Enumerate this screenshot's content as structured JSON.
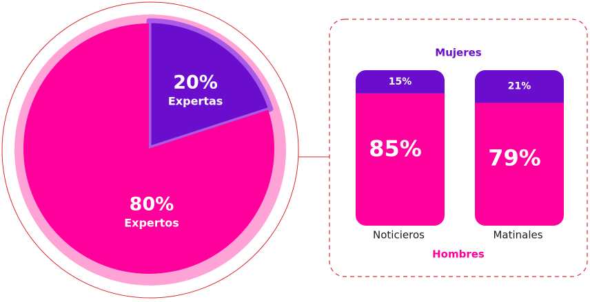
{
  "chart_data": [
    {
      "type": "pie",
      "categories": [
        "Expertas",
        "Expertos"
      ],
      "values": [
        20,
        80
      ],
      "value_labels": [
        "20%",
        "80%"
      ],
      "colors": [
        "#6a0dcc",
        "#ff009c"
      ]
    },
    {
      "type": "bar",
      "stacked": true,
      "categories": [
        "Noticieros",
        "Matinales"
      ],
      "series": [
        {
          "name": "Mujeres",
          "color": "#6a0dcc",
          "values": [
            15,
            21
          ],
          "value_labels": [
            "15%",
            "21%"
          ]
        },
        {
          "name": "Hombres",
          "color": "#ff009c",
          "values": [
            85,
            79
          ],
          "value_labels": [
            "85%",
            "79%"
          ]
        }
      ]
    }
  ]
}
